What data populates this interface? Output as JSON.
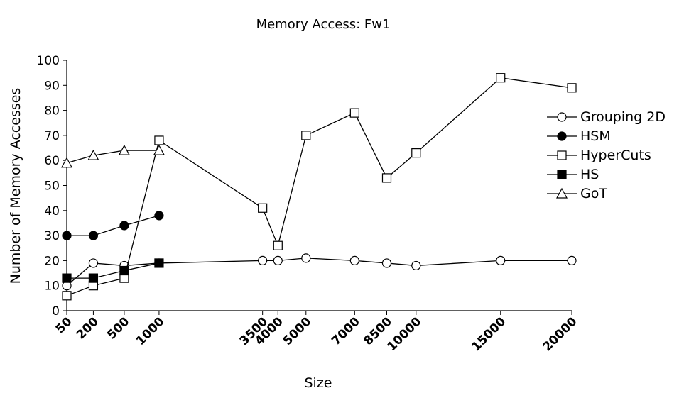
{
  "chart_data": {
    "type": "line",
    "title": "Memory Access: Fw1",
    "xlabel": "Size",
    "ylabel": "Number of Memory Accesses",
    "ylim": [
      0,
      100
    ],
    "yticks": [
      0,
      10,
      20,
      30,
      40,
      50,
      60,
      70,
      80,
      90,
      100
    ],
    "x": [
      50,
      200,
      500,
      1000,
      3500,
      4000,
      5000,
      7000,
      8500,
      10000,
      15000,
      20000
    ],
    "x_tick_labels": [
      "50",
      "200",
      "500",
      "1000",
      "3500",
      "4000",
      "5000",
      "7000",
      "8500",
      "10000",
      "15000",
      "20000"
    ],
    "legend_position": "right",
    "grid": false,
    "series": [
      {
        "name": "Grouping 2D",
        "marker": "circle-open",
        "values": [
          10,
          19,
          18,
          19,
          20,
          20,
          21,
          20,
          19,
          18,
          20,
          20
        ]
      },
      {
        "name": "HSM",
        "marker": "circle-filled",
        "values": [
          30,
          30,
          34,
          38,
          null,
          null,
          null,
          null,
          null,
          null,
          null,
          null
        ]
      },
      {
        "name": "HyperCuts",
        "marker": "square-open",
        "values": [
          6,
          10,
          13,
          68,
          41,
          26,
          70,
          79,
          53,
          63,
          93,
          89
        ]
      },
      {
        "name": "HS",
        "marker": "square-filled",
        "values": [
          13,
          13,
          16,
          19,
          null,
          null,
          null,
          null,
          null,
          null,
          null,
          null
        ]
      },
      {
        "name": "GoT",
        "marker": "triangle-open",
        "values": [
          59,
          62,
          64,
          64,
          null,
          null,
          null,
          null,
          null,
          null,
          null,
          null
        ]
      }
    ]
  }
}
